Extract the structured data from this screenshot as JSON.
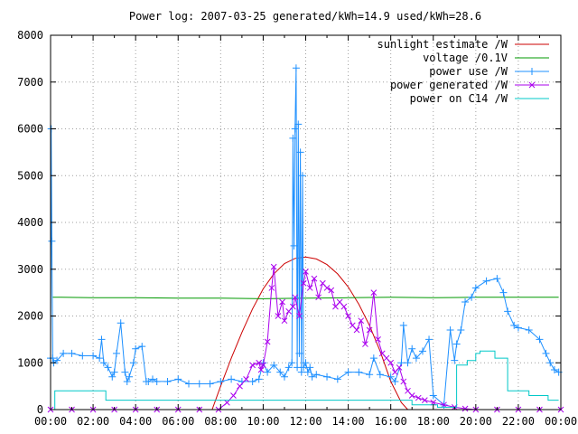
{
  "chart_data": {
    "type": "line",
    "title": "Power log: 2007-03-25 generated/kWh=14.9 used/kWh=28.6",
    "xlabel": "",
    "ylabel": "",
    "xlim": [
      0,
      24
    ],
    "ylim": [
      0,
      8000
    ],
    "grid": true,
    "legend_position": "top-right",
    "x_ticks": [
      "00:00",
      "02:00",
      "04:00",
      "06:00",
      "08:00",
      "10:00",
      "12:00",
      "14:00",
      "16:00",
      "18:00",
      "20:00",
      "22:00",
      "00:00"
    ],
    "y_ticks": [
      "0",
      "1000",
      "2000",
      "3000",
      "4000",
      "5000",
      "6000",
      "7000",
      "8000"
    ],
    "series": [
      {
        "name": "sunlight estimate /W",
        "color": "#cc0000",
        "style": "line",
        "x": [
          7.6,
          8.0,
          8.5,
          9.0,
          9.5,
          10.0,
          10.5,
          11.0,
          11.5,
          12.0,
          12.5,
          13.0,
          13.5,
          14.0,
          14.5,
          15.0,
          15.5,
          16.0,
          16.5,
          16.8
        ],
        "values": [
          0,
          500,
          1100,
          1650,
          2150,
          2580,
          2900,
          3120,
          3230,
          3260,
          3220,
          3100,
          2900,
          2620,
          2250,
          1800,
          1250,
          600,
          150,
          0
        ]
      },
      {
        "name": "voltage /0.1V",
        "color": "#009900",
        "style": "line",
        "x": [
          0.1,
          0.5,
          2,
          4,
          6,
          8,
          10,
          12,
          14,
          16,
          18,
          20,
          22,
          23.9
        ],
        "values": [
          2400,
          2400,
          2390,
          2390,
          2380,
          2380,
          2370,
          2380,
          2390,
          2400,
          2390,
          2400,
          2400,
          2400
        ]
      },
      {
        "name": "power use /W",
        "color": "#1e90ff",
        "style": "linepoints-plus",
        "x": [
          0,
          0.03,
          0.06,
          0.1,
          0.15,
          0.3,
          0.6,
          1.0,
          1.5,
          2.0,
          2.3,
          2.4,
          2.5,
          2.7,
          2.9,
          3.0,
          3.1,
          3.3,
          3.5,
          3.6,
          3.7,
          3.9,
          4.0,
          4.3,
          4.5,
          4.6,
          4.8,
          5.0,
          5.5,
          6.0,
          6.5,
          7.0,
          7.5,
          8.0,
          8.5,
          9.0,
          9.5,
          9.8,
          10.0,
          10.2,
          10.5,
          10.8,
          11.0,
          11.2,
          11.35,
          11.4,
          11.45,
          11.5,
          11.55,
          11.6,
          11.65,
          11.7,
          11.75,
          11.8,
          11.85,
          11.9,
          12.0,
          12.1,
          12.2,
          12.3,
          12.5,
          13.0,
          13.5,
          14.0,
          14.5,
          15.0,
          15.2,
          15.5,
          16.0,
          16.2,
          16.5,
          16.6,
          16.8,
          17.0,
          17.2,
          17.5,
          17.8,
          18.0,
          18.5,
          18.8,
          19.0,
          19.1,
          19.3,
          19.5,
          19.8,
          20.0,
          20.5,
          21.0,
          21.3,
          21.5,
          21.8,
          22.0,
          22.5,
          23.0,
          23.3,
          23.5,
          23.7,
          23.9
        ],
        "values": [
          1100,
          6000,
          3600,
          1100,
          1000,
          1050,
          1200,
          1200,
          1150,
          1150,
          1100,
          1500,
          1000,
          900,
          700,
          800,
          1200,
          1850,
          800,
          600,
          700,
          1000,
          1300,
          1350,
          600,
          600,
          650,
          600,
          600,
          650,
          550,
          550,
          550,
          600,
          650,
          600,
          600,
          650,
          1000,
          800,
          950,
          800,
          700,
          900,
          1000,
          5800,
          3500,
          6000,
          7300,
          900,
          6100,
          1200,
          5500,
          800,
          5000,
          900,
          1000,
          800,
          900,
          700,
          750,
          700,
          650,
          800,
          800,
          750,
          1100,
          750,
          700,
          600,
          1000,
          1800,
          1000,
          1300,
          1100,
          1250,
          1500,
          300,
          100,
          1700,
          1050,
          1400,
          1700,
          2300,
          2400,
          2600,
          2750,
          2800,
          2500,
          2100,
          1800,
          1750,
          1700,
          1500,
          1200,
          1000,
          850,
          800
        ]
      },
      {
        "name": "power generated /W",
        "color": "#aa00ee",
        "style": "linepoints-cross",
        "x": [
          0,
          1,
          2,
          3,
          4,
          5,
          6,
          7,
          7.9,
          8.3,
          8.6,
          8.9,
          9.2,
          9.5,
          9.8,
          9.9,
          10.0,
          10.2,
          10.4,
          10.5,
          10.7,
          10.9,
          11.0,
          11.2,
          11.4,
          11.5,
          11.7,
          11.9,
          12.0,
          12.2,
          12.4,
          12.6,
          12.8,
          13.0,
          13.2,
          13.4,
          13.6,
          13.8,
          14.0,
          14.2,
          14.4,
          14.6,
          14.8,
          15.0,
          15.2,
          15.4,
          15.6,
          15.8,
          16.0,
          16.2,
          16.4,
          16.6,
          16.8,
          17.0,
          17.3,
          17.6,
          18.0,
          18.5,
          19.0,
          19.5,
          20,
          21,
          22,
          23,
          24
        ],
        "values": [
          0,
          0,
          0,
          0,
          0,
          0,
          0,
          0,
          0,
          150,
          300,
          500,
          650,
          950,
          1000,
          850,
          950,
          1450,
          2600,
          3050,
          2000,
          2300,
          1900,
          2100,
          2200,
          2400,
          2000,
          2700,
          2950,
          2600,
          2800,
          2400,
          2700,
          2600,
          2550,
          2200,
          2300,
          2200,
          2000,
          1800,
          1700,
          1900,
          1400,
          1700,
          2500,
          1500,
          1200,
          1100,
          1000,
          800,
          900,
          600,
          400,
          300,
          250,
          200,
          150,
          100,
          50,
          20,
          0,
          0,
          0,
          0,
          0
        ]
      },
      {
        "name": "power on C14 /W",
        "color": "#00c8c8",
        "style": "line",
        "x": [
          0.1,
          0.2,
          0.2,
          2.6,
          2.6,
          7.6,
          7.6,
          17.0,
          17.0,
          18.2,
          18.2,
          19.1,
          19.1,
          19.6,
          19.6,
          20.0,
          20.0,
          20.2,
          20.2,
          20.9,
          20.9,
          21.5,
          21.5,
          22.5,
          22.5,
          23.4,
          23.4,
          23.9
        ],
        "values": [
          0,
          0,
          400,
          400,
          200,
          200,
          200,
          200,
          100,
          100,
          50,
          50,
          950,
          950,
          1050,
          1050,
          1200,
          1200,
          1250,
          1250,
          1100,
          1100,
          400,
          400,
          300,
          300,
          200,
          200
        ]
      }
    ]
  }
}
